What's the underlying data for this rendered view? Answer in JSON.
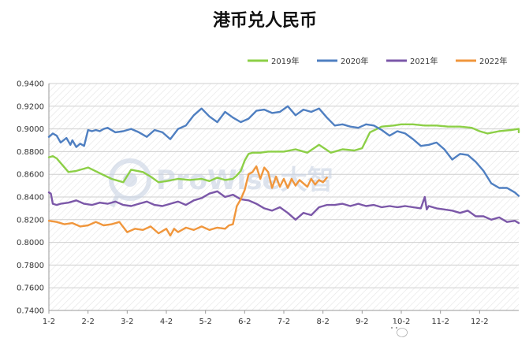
{
  "chart_data": {
    "type": "line",
    "title": "港币兑人民币",
    "xlabel": "",
    "ylabel": "",
    "x_ticks": [
      "1-2",
      "2-2",
      "3-2",
      "4-2",
      "5-2",
      "6-2",
      "7-2",
      "8-2",
      "9-2",
      "10-2",
      "11-2",
      "12-2"
    ],
    "y_ticks": [
      "0.9400",
      "0.9200",
      "0.9000",
      "0.8800",
      "0.8600",
      "0.8400",
      "0.8200",
      "0.8000",
      "0.7800",
      "0.7600",
      "0.7400"
    ],
    "ylim": [
      0.74,
      0.94
    ],
    "xlim": [
      0,
      12
    ],
    "grid": true,
    "legend_position": "top-right",
    "series": [
      {
        "name": "2019年",
        "color": "#8ccf46",
        "x": [
          0,
          0.1,
          0.2,
          0.3,
          0.5,
          0.7,
          1.0,
          1.3,
          1.6,
          1.9,
          2.1,
          2.4,
          2.6,
          2.8,
          3.0,
          3.3,
          3.6,
          3.9,
          4.1,
          4.3,
          4.5,
          4.7,
          4.8,
          4.9,
          5.0,
          5.1,
          5.2,
          5.4,
          5.6,
          5.8,
          6.0,
          6.3,
          6.6,
          6.9,
          7.2,
          7.5,
          7.8,
          8.0,
          8.2,
          8.5,
          8.8,
          9.0,
          9.3,
          9.6,
          9.9,
          10.2,
          10.5,
          10.8,
          11.0,
          11.2,
          11.5,
          11.8,
          12.0,
          12.0
        ],
        "values": [
          0.875,
          0.876,
          0.874,
          0.87,
          0.862,
          0.863,
          0.866,
          0.861,
          0.856,
          0.853,
          0.864,
          0.862,
          0.858,
          0.853,
          0.854,
          0.856,
          0.855,
          0.856,
          0.854,
          0.857,
          0.855,
          0.856,
          0.859,
          0.863,
          0.872,
          0.878,
          0.879,
          0.879,
          0.88,
          0.88,
          0.88,
          0.882,
          0.879,
          0.886,
          0.879,
          0.882,
          0.881,
          0.883,
          0.897,
          0.902,
          0.903,
          0.904,
          0.904,
          0.903,
          0.903,
          0.902,
          0.902,
          0.901,
          0.898,
          0.896,
          0.898,
          0.899,
          0.9,
          0.897
        ]
      },
      {
        "name": "2020年",
        "color": "#4f7fc1",
        "x": [
          0,
          0.1,
          0.2,
          0.3,
          0.45,
          0.55,
          0.6,
          0.7,
          0.8,
          0.9,
          1.0,
          1.1,
          1.2,
          1.3,
          1.4,
          1.5,
          1.7,
          1.9,
          2.1,
          2.3,
          2.5,
          2.7,
          2.9,
          3.1,
          3.3,
          3.5,
          3.7,
          3.9,
          4.1,
          4.3,
          4.5,
          4.7,
          4.9,
          5.1,
          5.3,
          5.5,
          5.7,
          5.9,
          6.1,
          6.3,
          6.5,
          6.7,
          6.9,
          7.1,
          7.3,
          7.5,
          7.7,
          7.9,
          8.1,
          8.3,
          8.5,
          8.7,
          8.9,
          9.1,
          9.3,
          9.5,
          9.7,
          9.9,
          10.1,
          10.3,
          10.5,
          10.7,
          10.9,
          11.1,
          11.3,
          11.5,
          11.7,
          11.9,
          12.0
        ],
        "values": [
          0.893,
          0.896,
          0.894,
          0.888,
          0.892,
          0.886,
          0.89,
          0.884,
          0.887,
          0.885,
          0.899,
          0.898,
          0.899,
          0.898,
          0.9,
          0.901,
          0.897,
          0.898,
          0.9,
          0.897,
          0.893,
          0.899,
          0.897,
          0.891,
          0.9,
          0.903,
          0.912,
          0.918,
          0.911,
          0.906,
          0.915,
          0.91,
          0.906,
          0.909,
          0.916,
          0.917,
          0.914,
          0.915,
          0.92,
          0.912,
          0.917,
          0.915,
          0.918,
          0.91,
          0.903,
          0.904,
          0.902,
          0.901,
          0.904,
          0.903,
          0.899,
          0.894,
          0.898,
          0.896,
          0.891,
          0.885,
          0.886,
          0.888,
          0.882,
          0.873,
          0.878,
          0.877,
          0.871,
          0.863,
          0.852,
          0.848,
          0.848,
          0.844,
          0.841
        ]
      },
      {
        "name": "2021年",
        "color": "#7b57a8",
        "x": [
          0,
          0.05,
          0.1,
          0.2,
          0.3,
          0.5,
          0.7,
          0.9,
          1.1,
          1.3,
          1.5,
          1.7,
          1.9,
          2.1,
          2.3,
          2.5,
          2.7,
          2.9,
          3.1,
          3.3,
          3.5,
          3.7,
          3.9,
          4.1,
          4.3,
          4.5,
          4.7,
          4.9,
          5.1,
          5.3,
          5.5,
          5.7,
          5.9,
          6.1,
          6.3,
          6.5,
          6.7,
          6.9,
          7.1,
          7.3,
          7.5,
          7.7,
          7.9,
          8.1,
          8.3,
          8.5,
          8.7,
          8.9,
          9.1,
          9.3,
          9.5,
          9.6,
          9.65,
          9.7,
          9.9,
          10.1,
          10.3,
          10.5,
          10.7,
          10.9,
          11.1,
          11.3,
          11.5,
          11.7,
          11.9,
          12.0
        ],
        "values": [
          0.844,
          0.843,
          0.834,
          0.833,
          0.834,
          0.835,
          0.837,
          0.834,
          0.833,
          0.835,
          0.834,
          0.836,
          0.833,
          0.832,
          0.834,
          0.836,
          0.833,
          0.832,
          0.834,
          0.836,
          0.833,
          0.837,
          0.839,
          0.843,
          0.845,
          0.84,
          0.842,
          0.838,
          0.837,
          0.834,
          0.83,
          0.828,
          0.831,
          0.826,
          0.82,
          0.826,
          0.824,
          0.831,
          0.833,
          0.833,
          0.834,
          0.832,
          0.834,
          0.832,
          0.833,
          0.831,
          0.832,
          0.831,
          0.832,
          0.831,
          0.83,
          0.84,
          0.829,
          0.832,
          0.83,
          0.829,
          0.828,
          0.826,
          0.828,
          0.823,
          0.823,
          0.82,
          0.822,
          0.818,
          0.819,
          0.817
        ]
      },
      {
        "name": "2022年",
        "color": "#f0963c",
        "x": [
          0,
          0.2,
          0.4,
          0.6,
          0.8,
          1.0,
          1.2,
          1.4,
          1.6,
          1.8,
          2.0,
          2.2,
          2.4,
          2.6,
          2.8,
          3.0,
          3.1,
          3.2,
          3.3,
          3.5,
          3.7,
          3.9,
          4.1,
          4.3,
          4.5,
          4.6,
          4.7,
          4.8,
          4.9,
          5.0,
          5.1,
          5.2,
          5.3,
          5.4,
          5.5,
          5.6,
          5.7,
          5.8,
          5.9,
          6.0,
          6.1,
          6.2,
          6.3,
          6.4,
          6.5,
          6.6,
          6.7,
          6.8,
          6.9,
          7.0,
          7.1
        ],
        "values": [
          0.819,
          0.818,
          0.816,
          0.817,
          0.814,
          0.815,
          0.818,
          0.815,
          0.816,
          0.818,
          0.809,
          0.812,
          0.811,
          0.814,
          0.808,
          0.812,
          0.806,
          0.812,
          0.809,
          0.813,
          0.811,
          0.814,
          0.811,
          0.813,
          0.812,
          0.815,
          0.816,
          0.832,
          0.838,
          0.846,
          0.86,
          0.862,
          0.867,
          0.856,
          0.866,
          0.862,
          0.848,
          0.858,
          0.849,
          0.856,
          0.848,
          0.856,
          0.85,
          0.855,
          0.852,
          0.849,
          0.856,
          0.851,
          0.855,
          0.853,
          0.857
        ]
      }
    ]
  },
  "watermark": {
    "text": "ProWise大智",
    "icon": "prowise-logo-icon"
  },
  "brand_overlay": {
    "text": "ProWise大智服务",
    "icon": "wechat-icon"
  }
}
